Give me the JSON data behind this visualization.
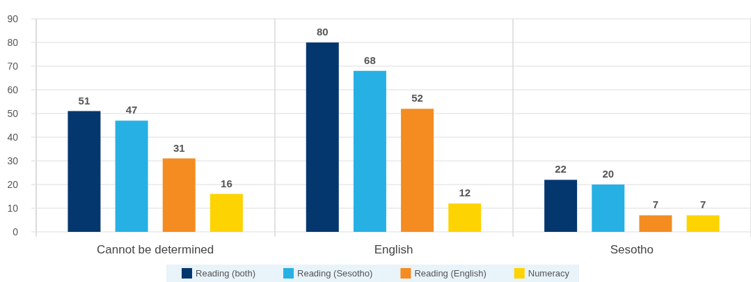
{
  "chart_data": {
    "type": "bar",
    "categories": [
      "Cannot be determined",
      "English",
      "Sesotho"
    ],
    "series": [
      {
        "name": "Reading (both)",
        "color": "#05376f",
        "values": [
          51,
          80,
          22
        ]
      },
      {
        "name": "Reading (Sesotho)",
        "color": "#27b0e4",
        "values": [
          47,
          68,
          20
        ]
      },
      {
        "name": "Reading (English)",
        "color": "#f48c21",
        "values": [
          31,
          52,
          7
        ]
      },
      {
        "name": "Numeracy",
        "color": "#fdd302",
        "values": [
          16,
          12,
          7
        ]
      }
    ],
    "ylim": [
      0,
      90
    ],
    "yticks": [
      0,
      10,
      20,
      30,
      40,
      50,
      60,
      70,
      80,
      90
    ],
    "grid": true,
    "legend": "bottom",
    "data_labels": true
  }
}
